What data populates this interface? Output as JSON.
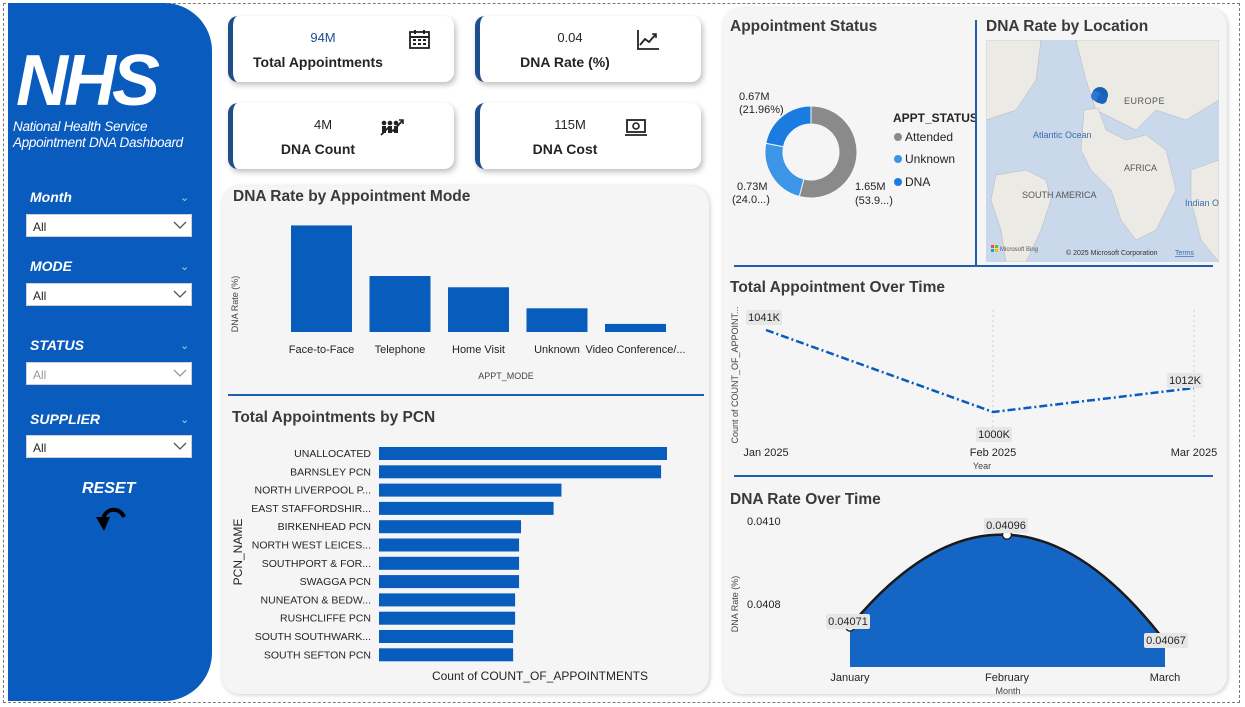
{
  "sidebar": {
    "logo": "NHS",
    "subtitle_line1": "National Health Service",
    "subtitle_line2": "Appointment DNA Dashboard",
    "slicers": [
      {
        "label": "Month",
        "value": "All"
      },
      {
        "label": "MODE",
        "value": "All"
      },
      {
        "label": "STATUS",
        "value": "All"
      },
      {
        "label": "SUPPLIER",
        "value": "All"
      }
    ],
    "reset_label": "RESET"
  },
  "kpis": [
    {
      "value": "94M",
      "label": "Total Appointments",
      "icon": "calendar-icon"
    },
    {
      "value": "0.04",
      "label": "DNA Rate (%)",
      "icon": "line-chart-icon"
    },
    {
      "value": "4M",
      "label": "DNA Count",
      "icon": "people-trend-icon"
    },
    {
      "value": "115M",
      "label": "DNA Cost",
      "icon": "money-icon"
    }
  ],
  "colors": {
    "accent": "#0a5bbe",
    "bar": "#085cbc",
    "attended": "#8a8a8a",
    "unknown": "#3d95e8",
    "dna": "#1a7ce0"
  },
  "mode_chart": {
    "title": "DNA Rate by Appointment Mode",
    "chart_data": {
      "type": "bar",
      "categories": [
        "Face-to-Face",
        "Telephone",
        "Home Visit",
        "Unknown",
        "Video Conference/..."
      ],
      "values": [
        0.0436,
        0.0229,
        0.0183,
        0.0097,
        0.0033
      ],
      "xlabel": "APPT_MODE",
      "ylabel": "DNA Rate (%)"
    }
  },
  "pcn_chart": {
    "title": "Total Appointments by PCN",
    "chart_data": {
      "type": "bar",
      "categories": [
        "UNALLOCATED",
        "BARNSLEY PCN",
        "NORTH LIVERPOOL P...",
        "EAST STAFFORDSHIR...",
        "BIRKENHEAD PCN",
        "NORTH WEST LEICES...",
        "SOUTHPORT & FOR...",
        "SWAGGA PCN",
        "NUNEATON & BEDW...",
        "RUSHCLIFFE PCN",
        "SOUTH SOUTHWARK...",
        "SOUTH SEFTON PCN"
      ],
      "values": [
        292,
        286,
        185,
        177,
        144,
        142,
        142,
        142,
        138,
        138,
        136,
        136
      ],
      "xlabel": "Count of COUNT_OF_APPOINTMENTS",
      "ylabel": "PCN_NAME"
    }
  },
  "status_chart": {
    "title": "Appointment Status",
    "legend_title": "APPT_STATUS",
    "chart_data": {
      "type": "pie",
      "categories": [
        "Attended",
        "Unknown",
        "DNA"
      ],
      "values": [
        1.65,
        0.73,
        0.67
      ],
      "labels": [
        {
          "value": "1.65M",
          "pct": "(53.9...)"
        },
        {
          "value": "0.73M",
          "pct": "(24.0...)"
        },
        {
          "value": "0.67M",
          "pct": "(21.96%)"
        }
      ]
    }
  },
  "map": {
    "title": "DNA Rate by Location",
    "labels": {
      "europe": "EUROPE",
      "atlantic": "Atlantic Ocean",
      "africa": "AFRICA",
      "south_america": "SOUTH AMERICA",
      "indian": "Indian O"
    },
    "brand": "Microsoft Bing",
    "copyright": "© 2025 Microsoft Corporation",
    "terms": "Terms"
  },
  "time_chart": {
    "title": "Total Appointment Over Time",
    "chart_data": {
      "type": "line",
      "x": [
        "Jan 2025",
        "Feb 2025",
        "Mar 2025"
      ],
      "values": [
        1041,
        1000,
        1012
      ],
      "data_labels": [
        "1041K",
        "1000K",
        "1012K"
      ],
      "xlabel": "Year",
      "ylabel": "Count of COUNT_OF_APPOINT..."
    }
  },
  "dna_time_chart": {
    "title": "DNA Rate Over Time",
    "chart_data": {
      "type": "area",
      "x": [
        "January",
        "February",
        "March"
      ],
      "values": [
        0.04071,
        0.04096,
        0.04067
      ],
      "data_labels": [
        "0.04071",
        "0.04096",
        "0.04067"
      ],
      "yticks": [
        "0.0410",
        "0.0408"
      ],
      "ylim": [
        0.0406,
        0.041
      ],
      "xlabel": "Month",
      "ylabel": "DNA Rate (%)"
    }
  }
}
